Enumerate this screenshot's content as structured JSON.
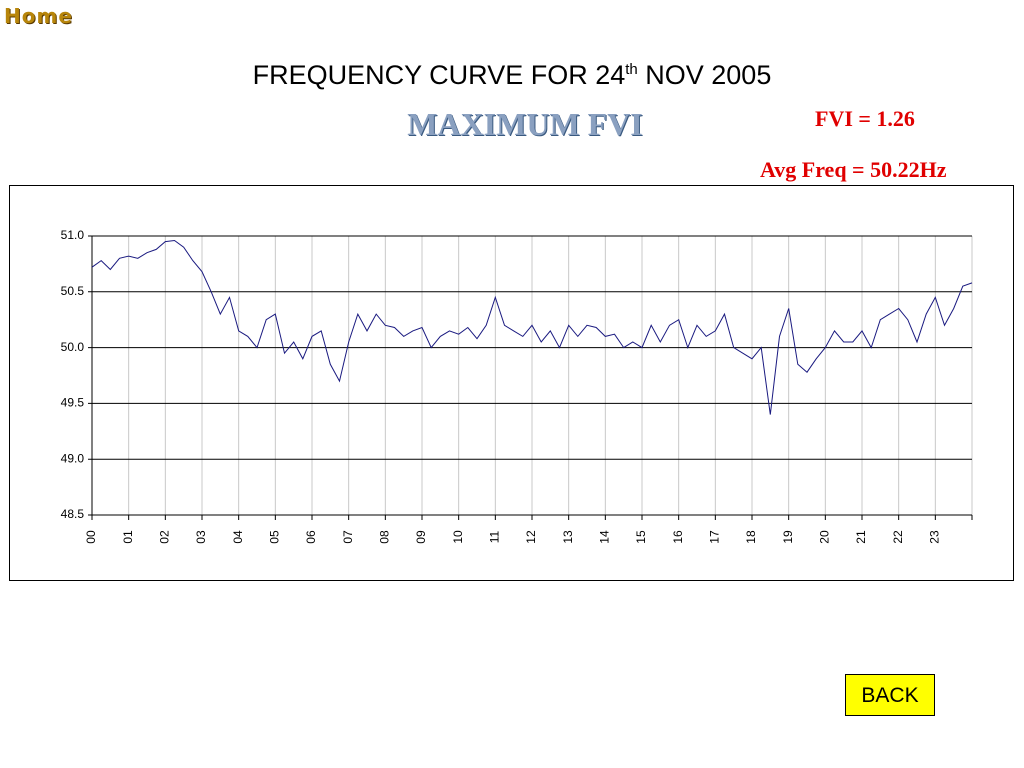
{
  "home": "Home",
  "title": "FREQUENCY CURVE FOR 24",
  "title_superscript": "th",
  "title_suffix": " NOV 2005",
  "subtitle": "MAXIMUM FVI",
  "annotations": [
    "FVI = 1.26",
    "Avg Freq = 50.22Hz"
  ],
  "button": "BACK",
  "chart_data": {
    "type": "line",
    "color": "#1a1a80",
    "grid": true,
    "xlim": [
      0,
      24
    ],
    "xticks": [
      {
        "value": 0,
        "label": "00"
      },
      {
        "value": 1,
        "label": "01"
      },
      {
        "value": 2,
        "label": "02"
      },
      {
        "value": 3,
        "label": "03"
      },
      {
        "value": 4,
        "label": "04"
      },
      {
        "value": 5,
        "label": "05"
      },
      {
        "value": 6,
        "label": "06"
      },
      {
        "value": 7,
        "label": "07"
      },
      {
        "value": 8,
        "label": "08"
      },
      {
        "value": 9,
        "label": "09"
      },
      {
        "value": 10,
        "label": "10"
      },
      {
        "value": 11,
        "label": "11"
      },
      {
        "value": 12,
        "label": "12"
      },
      {
        "value": 13,
        "label": "13"
      },
      {
        "value": 14,
        "label": "14"
      },
      {
        "value": 15,
        "label": "15"
      },
      {
        "value": 16,
        "label": "16"
      },
      {
        "value": 17,
        "label": "17"
      },
      {
        "value": 18,
        "label": "18"
      },
      {
        "value": 19,
        "label": "19"
      },
      {
        "value": 20,
        "label": "20"
      },
      {
        "value": 21,
        "label": "21"
      },
      {
        "value": 22,
        "label": "22"
      },
      {
        "value": 23,
        "label": "23"
      }
    ],
    "ylim": [
      48.5,
      51.0
    ],
    "yticks": [
      48.5,
      {
        "value": 49,
        "label": "49.0"
      },
      49.5,
      {
        "value": 50,
        "label": "50.0"
      },
      50.5,
      {
        "value": 51,
        "label": "51.0"
      }
    ],
    "x": [
      0,
      0.25,
      0.5,
      0.75,
      1,
      1.25,
      1.5,
      1.75,
      2,
      2.25,
      2.5,
      2.75,
      3,
      3.25,
      3.5,
      3.75,
      4,
      4.25,
      4.5,
      4.75,
      5,
      5.25,
      5.5,
      5.75,
      6,
      6.25,
      6.5,
      6.75,
      7,
      7.25,
      7.5,
      7.75,
      8,
      8.25,
      8.5,
      8.75,
      9,
      9.25,
      9.5,
      9.75,
      10,
      10.25,
      10.5,
      10.75,
      11,
      11.25,
      11.5,
      11.75,
      12,
      12.25,
      12.5,
      12.75,
      13,
      13.25,
      13.5,
      13.75,
      14,
      14.25,
      14.5,
      14.75,
      15,
      15.25,
      15.5,
      15.75,
      16,
      16.25,
      16.5,
      16.75,
      17,
      17.25,
      17.5,
      17.75,
      18,
      18.25,
      18.5,
      18.75,
      19,
      19.25,
      19.5,
      19.75,
      20,
      20.25,
      20.5,
      20.75,
      21,
      21.25,
      21.5,
      21.75,
      22,
      22.25,
      22.5,
      22.75,
      23,
      23.25,
      23.5,
      23.75,
      24
    ],
    "values": [
      50.72,
      50.78,
      50.7,
      50.8,
      50.82,
      50.8,
      50.85,
      50.88,
      50.95,
      50.96,
      50.9,
      50.78,
      50.68,
      50.5,
      50.3,
      50.45,
      50.15,
      50.1,
      50.0,
      50.25,
      50.3,
      49.95,
      50.05,
      49.9,
      50.1,
      50.15,
      49.85,
      49.7,
      50.05,
      50.3,
      50.15,
      50.3,
      50.2,
      50.18,
      50.1,
      50.15,
      50.18,
      50.0,
      50.1,
      50.15,
      50.12,
      50.18,
      50.08,
      50.2,
      50.45,
      50.2,
      50.15,
      50.1,
      50.2,
      50.05,
      50.15,
      50.0,
      50.2,
      50.1,
      50.2,
      50.18,
      50.1,
      50.12,
      50.0,
      50.05,
      50.0,
      50.2,
      50.05,
      50.2,
      50.25,
      50.0,
      50.2,
      50.1,
      50.15,
      50.3,
      50.0,
      49.95,
      49.9,
      50.0,
      49.4,
      50.1,
      50.35,
      49.85,
      49.78,
      49.9,
      50.0,
      50.15,
      50.05,
      50.05,
      50.15,
      50.0,
      50.25,
      50.3,
      50.35,
      50.25,
      50.05,
      50.3,
      50.45,
      50.2,
      50.35,
      50.55,
      50.58
    ]
  }
}
